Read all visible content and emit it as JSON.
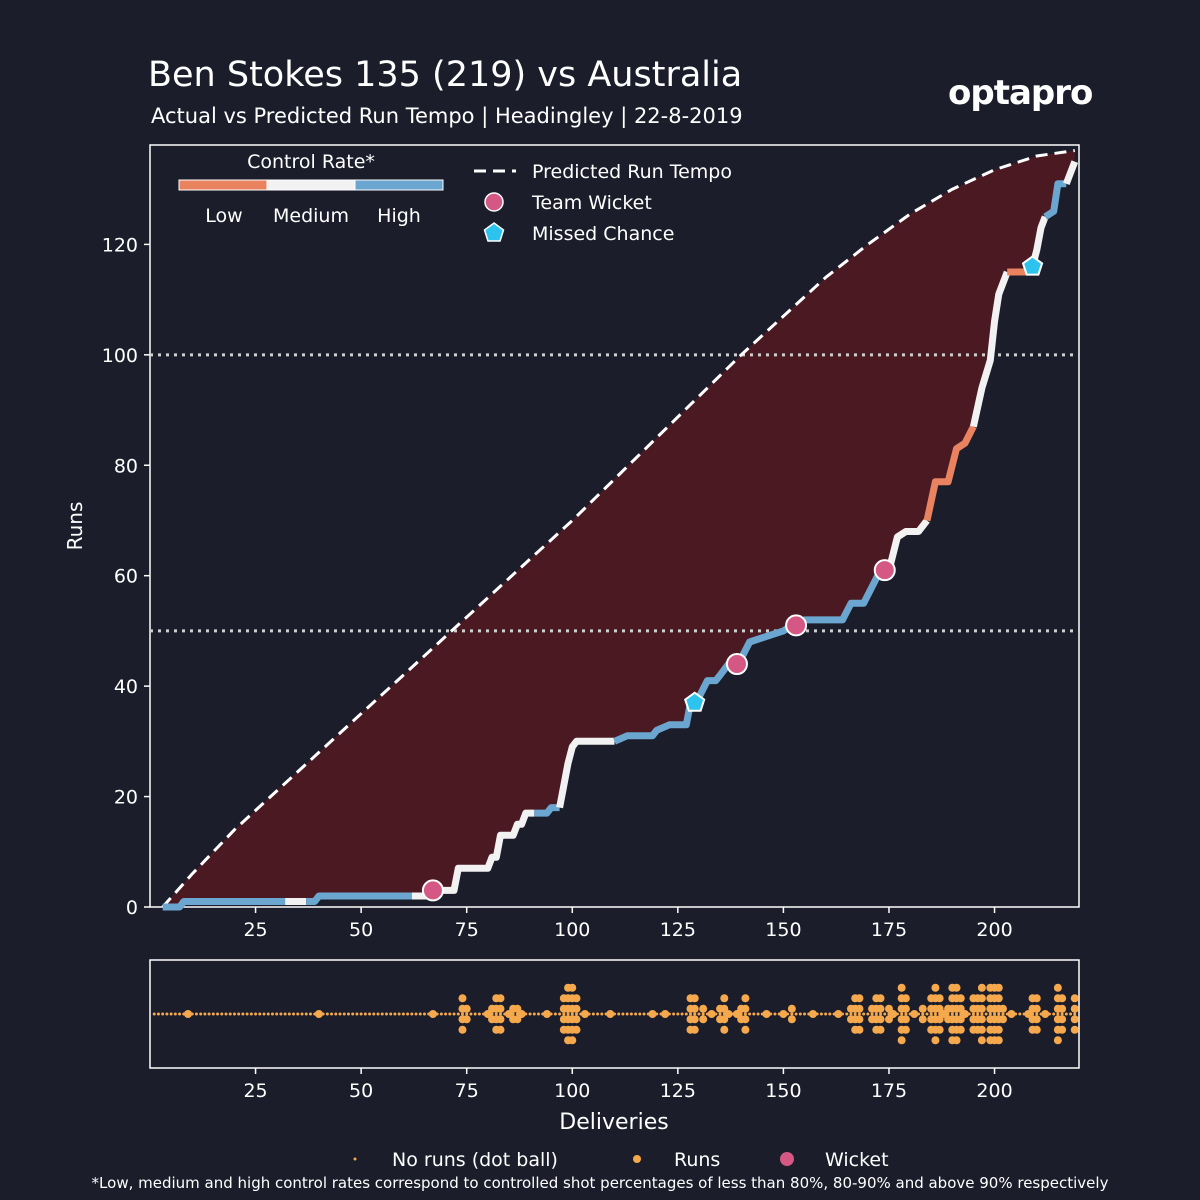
{
  "header": {
    "title": "Ben Stokes 135 (219) vs Australia",
    "subtitle": "Actual vs Predicted Run Tempo | Headingley | 22-8-2019",
    "logo": "optapro"
  },
  "colors": {
    "background": "#1b1d2b",
    "low": "#e8825f",
    "medium": "#f2f2f2",
    "high": "#6aa6cf",
    "fill": "#4a1922",
    "wicket": "#d45883",
    "missed_chance": "#2cc3ee",
    "dot": "#f5a94c"
  },
  "legend": {
    "control_title": "Control Rate*",
    "control_low": "Low",
    "control_medium": "Medium",
    "control_high": "High",
    "predicted": "Predicted Run Tempo",
    "team_wicket": "Team Wicket",
    "missed_chance": "Missed Chance"
  },
  "bottom_legend": {
    "no_runs": "No runs (dot ball)",
    "runs": "Runs",
    "wicket": "Wicket"
  },
  "footnote": "*Low, medium and high control rates correspond to controlled shot percentages of less than 80%, 80-90% and above 90% respectively",
  "chart_data": [
    {
      "type": "line",
      "ylabel": "Runs",
      "xlim": [
        0,
        220
      ],
      "ylim": [
        0,
        138
      ],
      "xticks": [
        25,
        50,
        75,
        100,
        125,
        150,
        175,
        200
      ],
      "yticks": [
        0,
        20,
        40,
        60,
        80,
        100,
        120
      ],
      "milestones": [
        50,
        100
      ],
      "predicted": {
        "name": "Predicted Run Tempo",
        "points": [
          [
            3,
            0
          ],
          [
            10,
            6
          ],
          [
            20,
            14
          ],
          [
            30,
            21
          ],
          [
            40,
            28
          ],
          [
            50,
            35
          ],
          [
            60,
            42
          ],
          [
            70,
            49
          ],
          [
            80,
            56
          ],
          [
            90,
            63
          ],
          [
            100,
            70
          ],
          [
            110,
            77.5
          ],
          [
            120,
            85
          ],
          [
            130,
            92.5
          ],
          [
            140,
            100
          ],
          [
            150,
            107
          ],
          [
            160,
            114
          ],
          [
            170,
            120
          ],
          [
            180,
            125.5
          ],
          [
            190,
            130
          ],
          [
            200,
            133.5
          ],
          [
            210,
            136
          ],
          [
            219,
            137
          ]
        ]
      },
      "actual": {
        "name": "Actual",
        "segments": [
          {
            "control": "high",
            "points": [
              [
                3,
                0
              ],
              [
                7,
                0
              ],
              [
                8,
                1
              ],
              [
                32,
                1
              ]
            ]
          },
          {
            "control": "medium",
            "points": [
              [
                32,
                1
              ],
              [
                37,
                1
              ]
            ]
          },
          {
            "control": "high",
            "points": [
              [
                37,
                1
              ],
              [
                39,
                1
              ],
              [
                40,
                2
              ],
              [
                62,
                2
              ]
            ]
          },
          {
            "control": "medium",
            "points": [
              [
                62,
                2
              ],
              [
                66,
                2
              ],
              [
                67,
                3
              ],
              [
                72,
                3
              ],
              [
                73,
                7
              ],
              [
                80,
                7
              ],
              [
                81,
                9
              ],
              [
                82,
                9
              ],
              [
                83,
                13
              ],
              [
                86,
                13
              ],
              [
                87,
                15
              ],
              [
                88,
                15
              ],
              [
                89,
                17
              ],
              [
                91,
                17
              ]
            ]
          },
          {
            "control": "high",
            "points": [
              [
                91,
                17
              ],
              [
                94,
                17
              ],
              [
                95,
                18
              ],
              [
                97,
                18
              ]
            ]
          },
          {
            "control": "medium",
            "points": [
              [
                97,
                18
              ],
              [
                98,
                22
              ],
              [
                99,
                26
              ],
              [
                100,
                29
              ],
              [
                101,
                30
              ],
              [
                110,
                30
              ]
            ]
          },
          {
            "control": "high",
            "points": [
              [
                110,
                30
              ],
              [
                113,
                31
              ],
              [
                119,
                31
              ],
              [
                120,
                32
              ],
              [
                123,
                33
              ],
              [
                127,
                33
              ],
              [
                128,
                37
              ],
              [
                130,
                38
              ],
              [
                132,
                41
              ],
              [
                134,
                41
              ],
              [
                135,
                42
              ],
              [
                137,
                44
              ],
              [
                140,
                45
              ],
              [
                142,
                48
              ],
              [
                146,
                49
              ],
              [
                150,
                50
              ],
              [
                152,
                51
              ],
              [
                155,
                52
              ],
              [
                164,
                52
              ],
              [
                166,
                55
              ],
              [
                169,
                55
              ],
              [
                171,
                58
              ],
              [
                173,
                61
              ]
            ]
          },
          {
            "control": "medium",
            "points": [
              [
                173,
                61
              ],
              [
                175,
                61
              ],
              [
                176,
                64
              ],
              [
                177,
                67
              ],
              [
                179,
                68
              ],
              [
                182,
                68
              ],
              [
                184,
                70
              ]
            ]
          },
          {
            "control": "low",
            "points": [
              [
                184,
                70
              ],
              [
                186,
                77
              ],
              [
                189,
                77
              ],
              [
                191,
                83
              ],
              [
                193,
                84
              ],
              [
                195,
                87
              ]
            ]
          },
          {
            "control": "medium",
            "points": [
              [
                195,
                87
              ],
              [
                197,
                94
              ],
              [
                199,
                99
              ],
              [
                200,
                106
              ],
              [
                201,
                111
              ],
              [
                203,
                115
              ]
            ]
          },
          {
            "control": "low",
            "points": [
              [
                203,
                115
              ],
              [
                208,
                115
              ],
              [
                209,
                116
              ]
            ]
          },
          {
            "control": "medium",
            "points": [
              [
                209,
                116
              ],
              [
                210,
                119
              ],
              [
                211,
                123
              ],
              [
                212,
                125
              ]
            ]
          },
          {
            "control": "high",
            "points": [
              [
                212,
                125
              ],
              [
                214,
                126
              ],
              [
                215,
                131
              ],
              [
                217,
                131
              ]
            ]
          },
          {
            "control": "medium",
            "points": [
              [
                217,
                131
              ],
              [
                219,
                135
              ]
            ]
          }
        ]
      },
      "wickets": [
        [
          67,
          3
        ],
        [
          139,
          44
        ],
        [
          153,
          51
        ],
        [
          174,
          61
        ]
      ],
      "missed_chances": [
        [
          129,
          37
        ],
        [
          209,
          116
        ]
      ]
    },
    {
      "type": "scatter",
      "xlabel": "Deliveries",
      "xlim": [
        0,
        220
      ],
      "xticks": [
        25,
        50,
        75,
        100,
        125,
        150,
        175,
        200
      ],
      "deliveries": 219,
      "scoring_deliveries": [
        [
          9,
          1
        ],
        [
          40,
          1
        ],
        [
          67,
          1
        ],
        [
          74,
          4
        ],
        [
          75,
          2
        ],
        [
          80,
          1
        ],
        [
          81,
          2
        ],
        [
          82,
          4
        ],
        [
          83,
          4
        ],
        [
          85,
          1
        ],
        [
          86,
          2
        ],
        [
          87,
          2
        ],
        [
          88,
          1
        ],
        [
          94,
          1
        ],
        [
          98,
          4
        ],
        [
          99,
          6
        ],
        [
          100,
          6
        ],
        [
          101,
          4
        ],
        [
          103,
          1
        ],
        [
          109,
          1
        ],
        [
          119,
          1
        ],
        [
          122,
          1
        ],
        [
          128,
          4
        ],
        [
          129,
          4
        ],
        [
          131,
          2
        ],
        [
          133,
          1
        ],
        [
          135,
          2
        ],
        [
          136,
          4
        ],
        [
          137,
          1
        ],
        [
          139,
          1
        ],
        [
          140,
          2
        ],
        [
          141,
          4
        ],
        [
          146,
          1
        ],
        [
          150,
          1
        ],
        [
          152,
          2
        ],
        [
          157,
          1
        ],
        [
          163,
          1
        ],
        [
          166,
          2
        ],
        [
          167,
          4
        ],
        [
          168,
          4
        ],
        [
          171,
          2
        ],
        [
          172,
          4
        ],
        [
          173,
          4
        ],
        [
          175,
          2
        ],
        [
          176,
          1
        ],
        [
          178,
          6
        ],
        [
          179,
          4
        ],
        [
          181,
          1
        ],
        [
          183,
          2
        ],
        [
          185,
          4
        ],
        [
          186,
          6
        ],
        [
          187,
          4
        ],
        [
          188,
          1
        ],
        [
          189,
          2
        ],
        [
          190,
          6
        ],
        [
          191,
          6
        ],
        [
          192,
          4
        ],
        [
          193,
          1
        ],
        [
          195,
          4
        ],
        [
          196,
          4
        ],
        [
          197,
          6
        ],
        [
          199,
          6
        ],
        [
          200,
          6
        ],
        [
          201,
          6
        ],
        [
          202,
          2
        ],
        [
          204,
          1
        ],
        [
          208,
          1
        ],
        [
          209,
          4
        ],
        [
          210,
          4
        ],
        [
          212,
          1
        ],
        [
          215,
          6
        ],
        [
          216,
          4
        ],
        [
          219,
          4
        ]
      ]
    }
  ]
}
